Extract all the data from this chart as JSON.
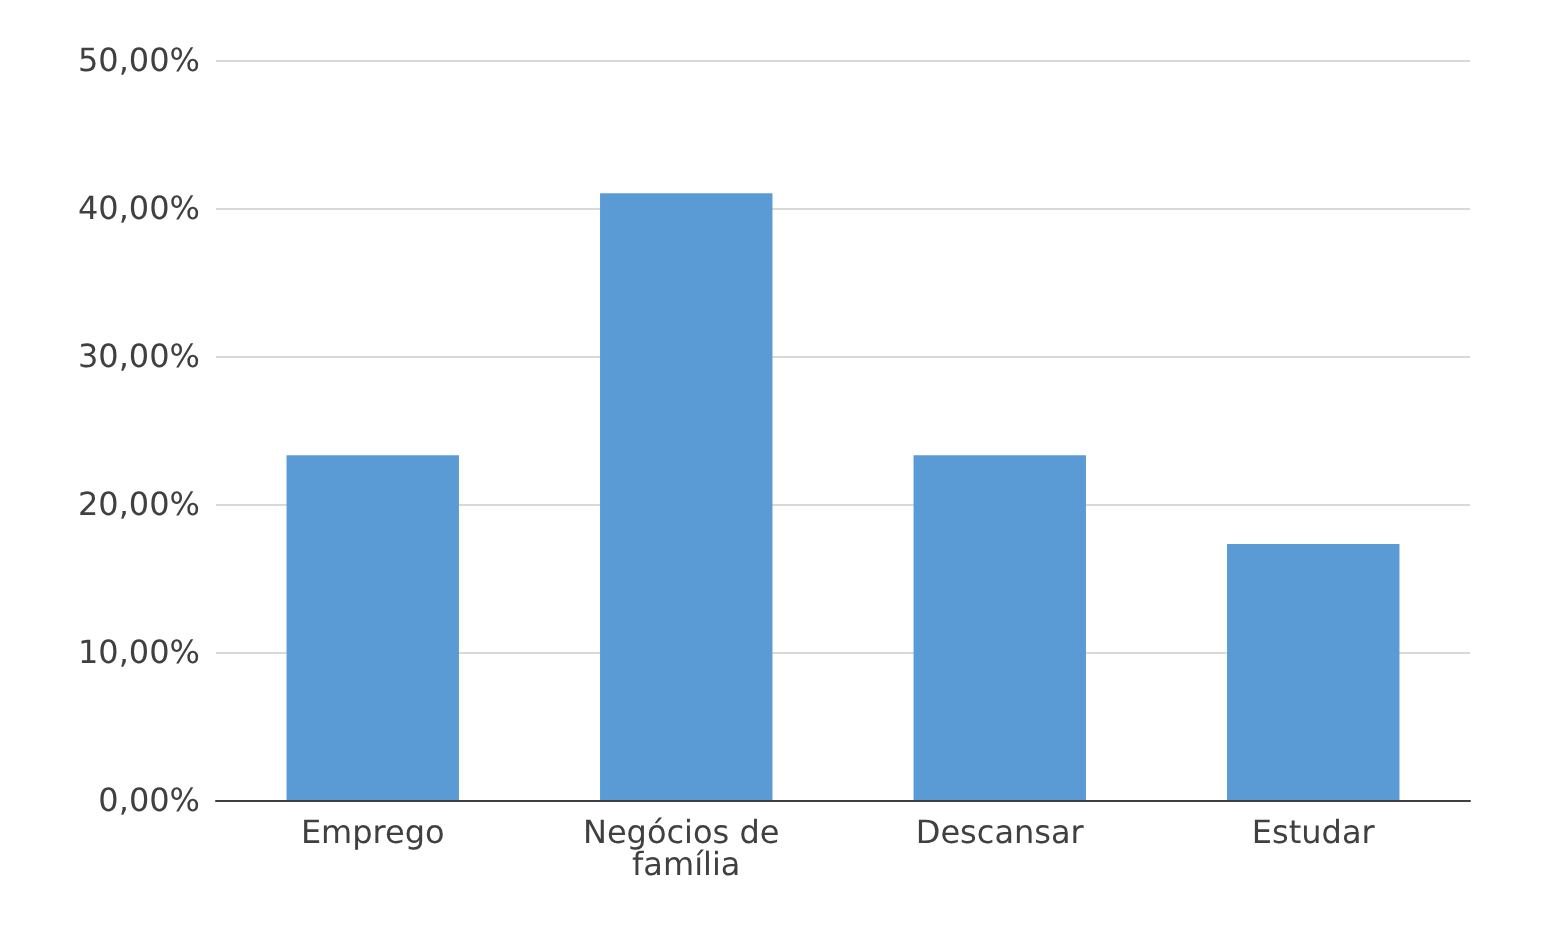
{
  "chart_data": {
    "type": "bar",
    "categories": [
      "Emprego",
      "Negócios de família",
      "Descansar",
      "Estudar"
    ],
    "values": [
      23.3,
      41,
      23.3,
      17.3
    ],
    "color": "#5b9bd5",
    "ylim": [
      0,
      50
    ],
    "yticks": [
      {
        "value": 0,
        "label": "0,00%"
      },
      {
        "value": 10,
        "label": "10,00%"
      },
      {
        "value": 20,
        "label": "20,00%"
      },
      {
        "value": 30,
        "label": "30,00%"
      },
      {
        "value": 40,
        "label": "40,00%"
      },
      {
        "value": 50,
        "label": "50,00%"
      }
    ],
    "grid": "y"
  }
}
